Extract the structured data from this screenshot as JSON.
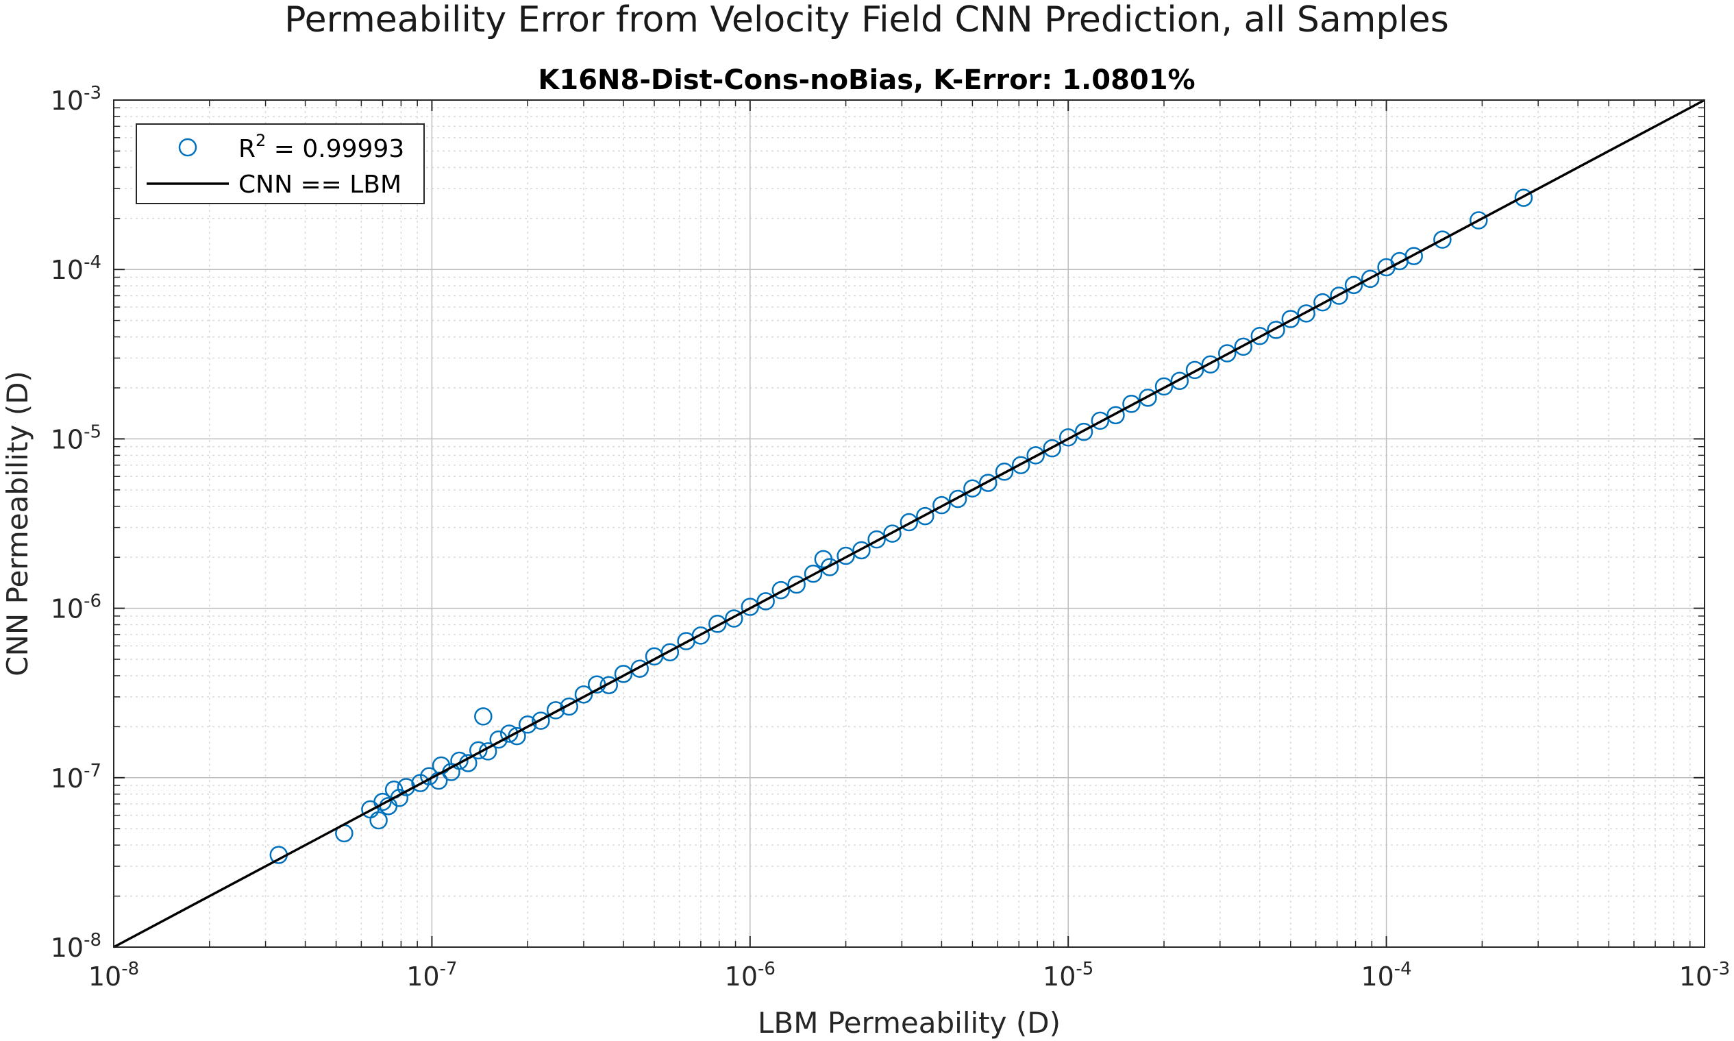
{
  "chart_data": {
    "type": "scatter",
    "title": "Permeability Error from Velocity Field CNN Prediction, all Samples",
    "subtitle": "K16N8-Dist-Cons-noBias, K-Error: 1.0801%",
    "xlabel": "LBM Permeability (D)",
    "ylabel": "CNN Permeability (D)",
    "x_scale": "log",
    "y_scale": "log",
    "xlim": [
      1e-08,
      0.001
    ],
    "ylim": [
      1e-08,
      0.001
    ],
    "x_ticks": [
      {
        "base": "10",
        "exp": "-8"
      },
      {
        "base": "10",
        "exp": "-7"
      },
      {
        "base": "10",
        "exp": "-6"
      },
      {
        "base": "10",
        "exp": "-5"
      },
      {
        "base": "10",
        "exp": "-4"
      },
      {
        "base": "10",
        "exp": "-3"
      }
    ],
    "y_ticks": [
      {
        "base": "10",
        "exp": "-8"
      },
      {
        "base": "10",
        "exp": "-7"
      },
      {
        "base": "10",
        "exp": "-6"
      },
      {
        "base": "10",
        "exp": "-5"
      },
      {
        "base": "10",
        "exp": "-4"
      },
      {
        "base": "10",
        "exp": "-3"
      }
    ],
    "grid": true,
    "minor_grid": true,
    "legend_position": "top-left",
    "legend": [
      {
        "label_main": "R",
        "label_sup": "2",
        "label_rest": " = 0.99993",
        "marker": "circle"
      },
      {
        "label": "CNN == LBM",
        "marker": "line"
      }
    ],
    "series": [
      {
        "marker": "circle",
        "color": "#0072bd",
        "points": [
          [
            3.3e-08,
            3.5e-08
          ],
          [
            5.3e-08,
            4.7e-08
          ],
          [
            6.4e-08,
            6.5e-08
          ],
          [
            6.8e-08,
            5.6e-08
          ],
          [
            7e-08,
            7.2e-08
          ],
          [
            7.3e-08,
            6.8e-08
          ],
          [
            7.6e-08,
            8.5e-08
          ],
          [
            7.9e-08,
            7.6e-08
          ],
          [
            8.3e-08,
            8.8e-08
          ],
          [
            9.2e-08,
            9.3e-08
          ],
          [
            9.8e-08,
            1.02e-07
          ],
          [
            1.05e-07,
            9.6e-08
          ],
          [
            1.07e-07,
            1.18e-07
          ],
          [
            1.15e-07,
            1.08e-07
          ],
          [
            1.22e-07,
            1.26e-07
          ],
          [
            1.3e-07,
            1.22e-07
          ],
          [
            1.4e-07,
            1.45e-07
          ],
          [
            1.45e-07,
            2.3e-07
          ],
          [
            1.5e-07,
            1.43e-07
          ],
          [
            1.62e-07,
            1.68e-07
          ],
          [
            1.75e-07,
            1.82e-07
          ],
          [
            1.85e-07,
            1.76e-07
          ],
          [
            2e-07,
            2.06e-07
          ],
          [
            2.2e-07,
            2.17e-07
          ],
          [
            2.45e-07,
            2.5e-07
          ],
          [
            2.7e-07,
            2.63e-07
          ],
          [
            3e-07,
            3.1e-07
          ],
          [
            3.3e-07,
            3.55e-07
          ],
          [
            3.6e-07,
            3.52e-07
          ],
          [
            4e-07,
            4.1e-07
          ],
          [
            4.5e-07,
            4.4e-07
          ],
          [
            5e-07,
            5.2e-07
          ],
          [
            5.6e-07,
            5.5e-07
          ],
          [
            6.3e-07,
            6.4e-07
          ],
          [
            7e-07,
            6.9e-07
          ],
          [
            7.9e-07,
            8.1e-07
          ],
          [
            8.9e-07,
            8.7e-07
          ],
          [
            1e-06,
            1.02e-06
          ],
          [
            1.12e-06,
            1.1e-06
          ],
          [
            1.25e-06,
            1.28e-06
          ],
          [
            1.4e-06,
            1.38e-06
          ],
          [
            1.58e-06,
            1.6e-06
          ],
          [
            1.7e-06,
            1.95e-06
          ],
          [
            1.78e-06,
            1.75e-06
          ],
          [
            2e-06,
            2.04e-06
          ],
          [
            2.24e-06,
            2.2e-06
          ],
          [
            2.5e-06,
            2.55e-06
          ],
          [
            2.8e-06,
            2.76e-06
          ],
          [
            3.16e-06,
            3.22e-06
          ],
          [
            3.55e-06,
            3.5e-06
          ],
          [
            4e-06,
            4.06e-06
          ],
          [
            4.5e-06,
            4.42e-06
          ],
          [
            5e-06,
            5.1e-06
          ],
          [
            5.6e-06,
            5.5e-06
          ],
          [
            6.3e-06,
            6.4e-06
          ],
          [
            7.1e-06,
            7e-06
          ],
          [
            7.9e-06,
            8e-06
          ],
          [
            8.9e-06,
            8.8e-06
          ],
          [
            1e-05,
            1.02e-05
          ],
          [
            1.12e-05,
            1.1e-05
          ],
          [
            1.26e-05,
            1.28e-05
          ],
          [
            1.41e-05,
            1.38e-05
          ],
          [
            1.58e-05,
            1.61e-05
          ],
          [
            1.78e-05,
            1.75e-05
          ],
          [
            2e-05,
            2.04e-05
          ],
          [
            2.24e-05,
            2.2e-05
          ],
          [
            2.5e-05,
            2.55e-05
          ],
          [
            2.8e-05,
            2.75e-05
          ],
          [
            3.16e-05,
            3.2e-05
          ],
          [
            3.55e-05,
            3.5e-05
          ],
          [
            4e-05,
            4.05e-05
          ],
          [
            4.5e-05,
            4.4e-05
          ],
          [
            5e-05,
            5.1e-05
          ],
          [
            5.6e-05,
            5.5e-05
          ],
          [
            6.3e-05,
            6.4e-05
          ],
          [
            7.1e-05,
            7e-05
          ],
          [
            7.9e-05,
            8.1e-05
          ],
          [
            8.9e-05,
            8.8e-05
          ],
          [
            0.0001,
            0.000103
          ],
          [
            0.00011,
            0.000112
          ],
          [
            0.000122,
            0.00012
          ],
          [
            0.00015,
            0.00015
          ],
          [
            0.000195,
            0.000195
          ],
          [
            0.00027,
            0.000265
          ]
        ]
      },
      {
        "name": "CNN == LBM",
        "marker": "line",
        "color": "#000000",
        "x": [
          1e-08,
          0.001
        ],
        "y": [
          1e-08,
          0.001
        ]
      }
    ]
  }
}
